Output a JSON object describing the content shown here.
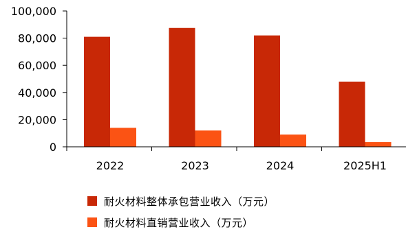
{
  "chart_data": {
    "type": "bar",
    "title": "",
    "xlabel": "",
    "ylabel": "",
    "categories": [
      "2022",
      "2023",
      "2024",
      "2025H1"
    ],
    "series": [
      {
        "name": "耐火材料整体承包营业收入（万元）",
        "color": "#c82806",
        "values": [
          81000,
          87500,
          82000,
          48000
        ]
      },
      {
        "name": "耐火材料直销营业收入（万元）",
        "color": "#fb5314",
        "values": [
          14000,
          12000,
          9000,
          3500
        ]
      }
    ],
    "ylim": [
      0,
      100000
    ],
    "yticks": [
      "0",
      "20,000",
      "40,000",
      "60,000",
      "80,000",
      "100,000"
    ],
    "grid": false,
    "legend_position": "bottom"
  }
}
